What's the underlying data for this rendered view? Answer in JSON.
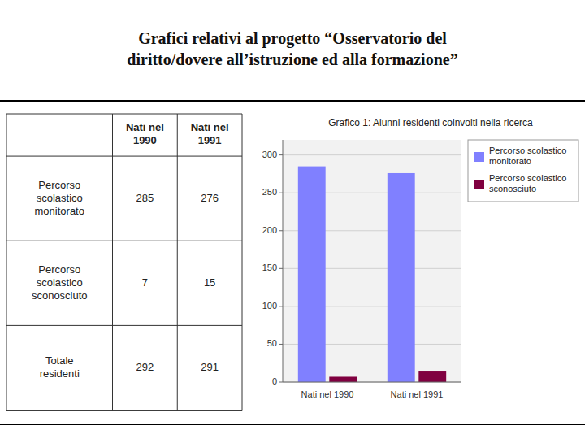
{
  "title": "Grafici relativi al progetto “Osservatorio del\ndiritto/dovere all’istruzione ed alla formazione”",
  "table": {
    "headers": [
      null,
      "Nati nel\n1990",
      "Nati nel\n1991"
    ],
    "rows": [
      [
        "Percorso\nscolastico\nmonitorato",
        "285",
        "276"
      ],
      [
        "Percorso\nscolastico\nsconosciuto",
        "7",
        "15"
      ],
      [
        "Totale\nresidenti",
        "292",
        "291"
      ]
    ]
  },
  "chart_data": {
    "type": "bar",
    "title": "Grafico 1: Alunni residenti coinvolti nella ricerca",
    "categories": [
      "Nati nel 1990",
      "Nati nel 1991"
    ],
    "series": [
      {
        "name": "Percorso scolastico\nmonitorato",
        "color": "#8080FF",
        "values": [
          285,
          276
        ]
      },
      {
        "name": "Percorso scolastico\nsconosciuto",
        "color": "#800040",
        "values": [
          7,
          15
        ]
      }
    ],
    "ylim": [
      0,
      320
    ],
    "yticks": [
      0,
      50,
      100,
      150,
      200,
      250,
      300
    ],
    "grid": true,
    "legend": "upper right"
  }
}
